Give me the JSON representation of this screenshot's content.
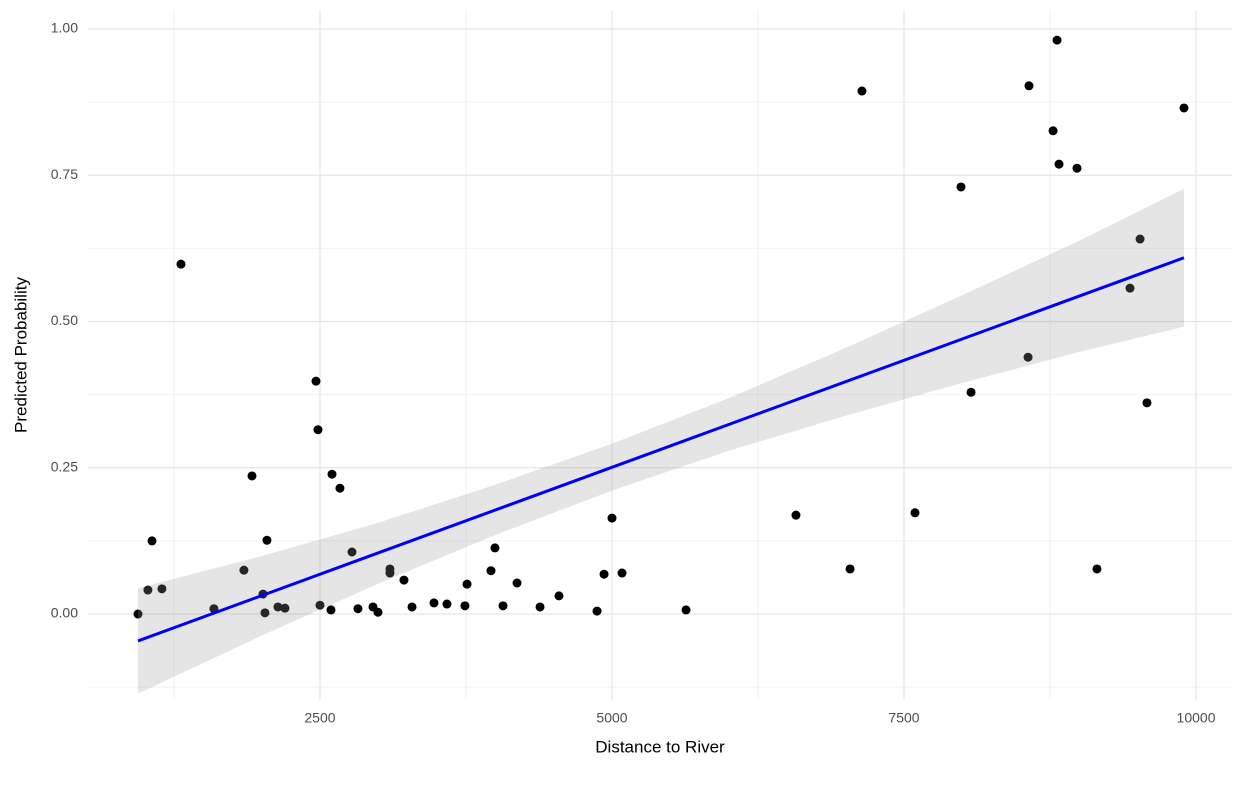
{
  "chart_data": {
    "type": "scatter",
    "xlabel": "Distance to River",
    "ylabel": "Predicted Probability",
    "xlim": [
      514,
      10308
    ],
    "ylim": [
      -0.147,
      1.0325
    ],
    "xticks": [
      2500,
      5000,
      7500,
      10000
    ],
    "yticks": [
      {
        "value": 0,
        "label": "0.00"
      },
      {
        "value": 0.25,
        "label": "0.25"
      },
      {
        "value": 0.5,
        "label": "0.50"
      },
      {
        "value": 0.75,
        "label": "0.75"
      },
      {
        "value": 1,
        "label": "1.00"
      }
    ],
    "x_minor_ticks": [
      1250,
      3750,
      6250,
      8750
    ],
    "y_minor_ticks": [
      -0.125,
      0.125,
      0.375,
      0.625,
      0.875
    ],
    "grid": true,
    "series": [
      {
        "color": "#000000",
        "x": [
          942,
          1027,
          1062,
          1147,
          1310,
          1592,
          1849,
          1918,
          2012,
          2029,
          2046,
          2140,
          2200,
          2466,
          2483,
          2500,
          2594,
          2603,
          2671,
          2774,
          2825,
          2954,
          2997,
          3099,
          3099,
          3219,
          3288,
          3476,
          3587,
          3741,
          3759,
          3964,
          3998,
          4067,
          4187,
          4384,
          4546,
          4872,
          4932,
          5000,
          5086,
          5634,
          6575,
          7038,
          7140,
          7594,
          7988,
          8074,
          8562,
          8570,
          8776,
          8810,
          8827,
          8981,
          9152,
          9435,
          9521,
          9580,
          9897
        ],
        "values": [
          0.0,
          0.041,
          0.125,
          0.043,
          0.598,
          0.009,
          0.075,
          0.236,
          0.034,
          0.002,
          0.126,
          0.012,
          0.01,
          0.398,
          0.315,
          0.015,
          0.007,
          0.239,
          0.215,
          0.106,
          0.009,
          0.012,
          0.003,
          0.077,
          0.07,
          0.058,
          0.012,
          0.019,
          0.017,
          0.014,
          0.051,
          0.074,
          0.113,
          0.014,
          0.053,
          0.012,
          0.031,
          0.005,
          0.068,
          0.164,
          0.07,
          0.007,
          0.169,
          0.077,
          0.894,
          0.173,
          0.73,
          0.379,
          0.439,
          0.903,
          0.826,
          0.981,
          0.769,
          0.762,
          0.077,
          0.557,
          0.641,
          0.361,
          0.865
        ]
      }
    ],
    "fit": {
      "color": "#0000ff",
      "x": [
        942,
        9897
      ],
      "values": [
        -0.046,
        0.609
      ]
    },
    "band": {
      "color": "#999999",
      "x": [
        942,
        2000,
        3000,
        4000,
        5000,
        6000,
        7000,
        8000,
        9000,
        9897
      ],
      "lower": [
        -0.136,
        -0.037,
        0.052,
        0.135,
        0.211,
        0.279,
        0.339,
        0.395,
        0.448,
        0.491
      ],
      "upper": [
        0.044,
        0.099,
        0.156,
        0.221,
        0.291,
        0.369,
        0.455,
        0.545,
        0.638,
        0.727
      ]
    }
  }
}
